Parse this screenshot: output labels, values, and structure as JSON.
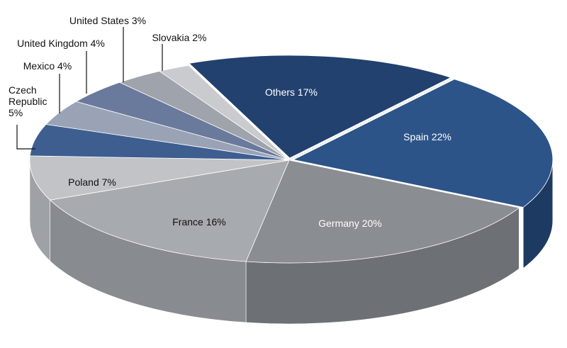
{
  "chart_data": {
    "type": "pie",
    "title": "",
    "style": "3d-exploded-oblique",
    "slices": [
      {
        "label": "Spain 22%",
        "category": "Spain",
        "value": 22,
        "color": "#2c5488",
        "side_color": "#1d3a62",
        "label_color": "light"
      },
      {
        "label": "Germany 20%",
        "category": "Germany",
        "value": 20,
        "color": "#8a8d92",
        "side_color": "#6d7075",
        "label_color": "light"
      },
      {
        "label": "France 16%",
        "category": "France",
        "value": 16,
        "color": "#a7aaaf",
        "side_color": "#888b90",
        "label_color": "dark"
      },
      {
        "label": "Poland 7%",
        "category": "Poland",
        "value": 7,
        "color": "#c1c3c7",
        "side_color": "#9ea1a5",
        "label_color": "dark"
      },
      {
        "label": "Czech Republic 5%",
        "category": "Czech Republic",
        "value": 5,
        "color": "#3e5e90",
        "side_color": "#2b4670",
        "label_color": "dark"
      },
      {
        "label": "Mexico 4%",
        "category": "Mexico",
        "value": 4,
        "color": "#9aa3b6",
        "side_color": "#7a8396",
        "label_color": "dark"
      },
      {
        "label": "United Kingdom 4%",
        "category": "United Kingdom",
        "value": 4,
        "color": "#6a7a9c",
        "side_color": "#52607e",
        "label_color": "dark"
      },
      {
        "label": "United States 3%",
        "category": "United States",
        "value": 3,
        "color": "#9fa3ab",
        "side_color": "#80848c",
        "label_color": "dark"
      },
      {
        "label": "Slovakia 2%",
        "category": "Slovakia",
        "value": 2,
        "color": "#c9cbce",
        "side_color": "#a9abae",
        "label_color": "dark"
      },
      {
        "label": "Others 17%",
        "category": "Others",
        "value": 17,
        "color": "#23416f",
        "side_color": "#172e52",
        "label_color": "light"
      }
    ],
    "labels_display": {
      "czech_line1": "Czech",
      "czech_line2": "Republic",
      "czech_line3": "5%"
    },
    "legend": "none"
  }
}
